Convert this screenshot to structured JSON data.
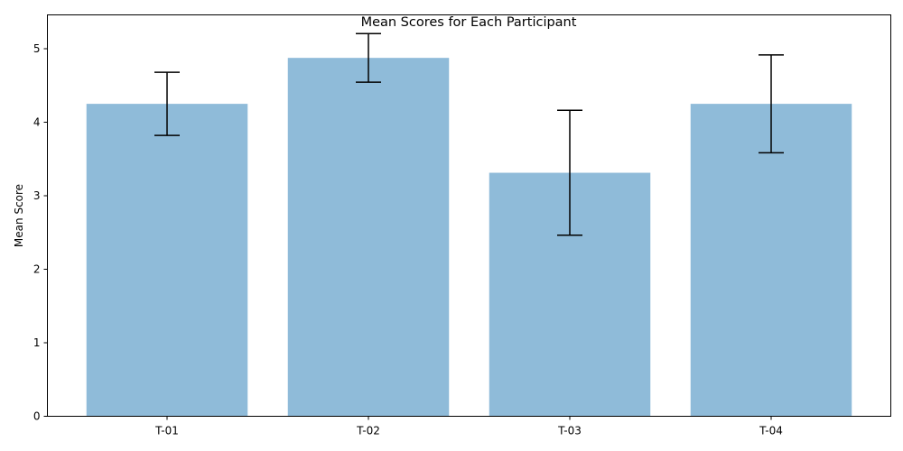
{
  "chart_data": {
    "type": "bar",
    "title": "Mean Scores for Each Participant",
    "xlabel": "",
    "ylabel": "Mean Score",
    "categories": [
      "T-01",
      "T-02",
      "T-03",
      "T-04"
    ],
    "values": [
      4.25,
      4.875,
      3.3125,
      4.25
    ],
    "error": [
      0.43,
      0.33,
      0.85,
      0.665
    ],
    "ylim": [
      0,
      5.46
    ],
    "yticks": [
      0,
      1,
      2,
      3,
      4,
      5
    ],
    "grid": false,
    "legend": "none",
    "colors": {
      "bar": "#1f77b4",
      "bar_opacity": 0.5,
      "error": "#000000",
      "axis": "#000000"
    }
  }
}
